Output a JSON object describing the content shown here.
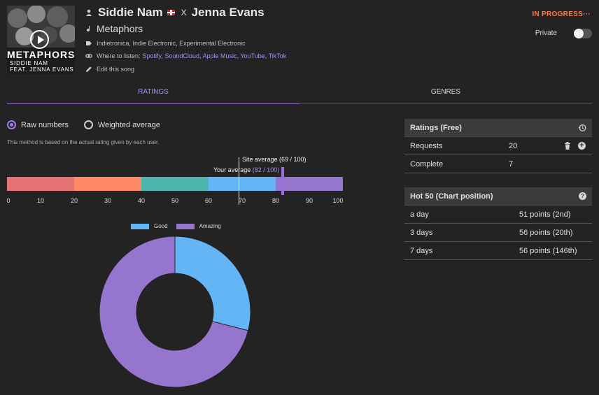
{
  "song": {
    "cover_title": "METAPHORS",
    "cover_sub1": "SIDDIE NAM",
    "cover_sub2": "FEAT. JENNA EVANS",
    "artist": "Siddie Nam",
    "flag_icon": "uk-flag-icon",
    "separator": "x",
    "featured": "Jenna Evans",
    "title": "Metaphors",
    "genres": "Indietronica, Indie Electronic, Experimental Electronic",
    "listen_label": "Where to listen:",
    "listen_links": [
      "Spotify",
      "SoundCloud",
      "Apple Music",
      "YouTube",
      "TikTok"
    ],
    "edit_label": "Edit this song"
  },
  "status": {
    "label": "IN PROGRESS",
    "menu": "···",
    "color": "#ff7a45"
  },
  "privacy": {
    "label": "Private",
    "enabled": false
  },
  "tabs": [
    {
      "label": "RATINGS",
      "active": true
    },
    {
      "label": "GENRES",
      "active": false
    }
  ],
  "rating_mode": {
    "options": [
      {
        "label": "Raw numbers",
        "selected": true
      },
      {
        "label": "Weighted average",
        "selected": false
      }
    ],
    "description": "This method is based on the actual rating given by each user."
  },
  "rating_scale": {
    "ticks": [
      "0",
      "10",
      "20",
      "30",
      "40",
      "50",
      "60",
      "70",
      "80",
      "90",
      "100"
    ],
    "segment_colors": [
      "#e57373",
      "#ff8a65",
      "#4db6ac",
      "#64b5f6",
      "#9575cd"
    ],
    "site_average": {
      "label": "Site average (69 / 100)",
      "value": 69
    },
    "your_average": {
      "label": "Your average",
      "value_text": "(82 / 100)",
      "value": 82
    }
  },
  "chart_data": {
    "type": "pie",
    "variant": "donut",
    "categories": [
      "Good",
      "Amazing"
    ],
    "values": [
      29,
      71
    ],
    "colors": [
      "#64b5f6",
      "#9575cd"
    ],
    "legend": "top"
  },
  "ratings_panel": {
    "title": "Ratings (Free)",
    "rows": [
      {
        "label": "Requests",
        "value": "20"
      },
      {
        "label": "Complete",
        "value": "7"
      }
    ]
  },
  "hot50_panel": {
    "title": "Hot 50 (Chart position)",
    "help": "?",
    "rows": [
      {
        "label": "a day",
        "value": "51 points (2nd)"
      },
      {
        "label": "3 days",
        "value": "56 points (20th)"
      },
      {
        "label": "7 days",
        "value": "56 points (146th)"
      }
    ]
  }
}
